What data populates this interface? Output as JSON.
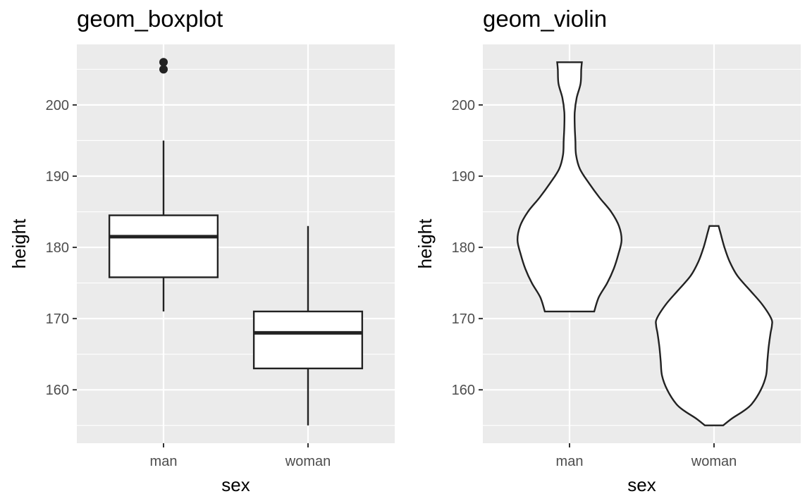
{
  "chart_data": [
    {
      "type": "boxplot",
      "title": "geom_boxplot",
      "xlabel": "sex",
      "ylabel": "height",
      "categories": [
        "man",
        "woman"
      ],
      "ylim": [
        152.5,
        208.5
      ],
      "yticks": [
        160,
        170,
        180,
        190,
        200
      ],
      "grid": true,
      "boxes": [
        {
          "category": "man",
          "whisker_low": 171,
          "q1": 175.8,
          "median": 181.5,
          "q3": 184.5,
          "whisker_high": 195,
          "outliers": [
            205,
            206
          ]
        },
        {
          "category": "woman",
          "whisker_low": 155,
          "q1": 163,
          "median": 168,
          "q3": 171,
          "whisker_high": 183,
          "outliers": []
        }
      ]
    },
    {
      "type": "violin",
      "title": "geom_violin",
      "xlabel": "sex",
      "ylabel": "height",
      "categories": [
        "man",
        "woman"
      ],
      "ylim": [
        152.5,
        208.5
      ],
      "yticks": [
        160,
        170,
        180,
        190,
        200
      ],
      "grid": true,
      "violins": [
        {
          "category": "man",
          "min": 171,
          "max": 206,
          "density": [
            [
              171,
              0.38
            ],
            [
              173,
              0.45
            ],
            [
              175,
              0.58
            ],
            [
              177,
              0.68
            ],
            [
              179,
              0.75
            ],
            [
              181,
              0.8
            ],
            [
              183,
              0.76
            ],
            [
              185,
              0.64
            ],
            [
              187,
              0.46
            ],
            [
              189,
              0.3
            ],
            [
              191,
              0.16
            ],
            [
              193,
              0.1
            ],
            [
              195,
              0.09
            ],
            [
              197,
              0.08
            ],
            [
              199,
              0.08
            ],
            [
              201,
              0.11
            ],
            [
              203,
              0.17
            ],
            [
              205,
              0.18
            ],
            [
              206,
              0.19
            ]
          ]
        },
        {
          "category": "woman",
          "min": 155,
          "max": 183,
          "density": [
            [
              155,
              0.14
            ],
            [
              156,
              0.28
            ],
            [
              157,
              0.45
            ],
            [
              158,
              0.58
            ],
            [
              160,
              0.72
            ],
            [
              162,
              0.8
            ],
            [
              164,
              0.82
            ],
            [
              166,
              0.84
            ],
            [
              168,
              0.87
            ],
            [
              169,
              0.89
            ],
            [
              170,
              0.88
            ],
            [
              172,
              0.74
            ],
            [
              174,
              0.55
            ],
            [
              176,
              0.36
            ],
            [
              178,
              0.24
            ],
            [
              180,
              0.16
            ],
            [
              182,
              0.1
            ],
            [
              183,
              0.07
            ]
          ]
        }
      ]
    }
  ]
}
